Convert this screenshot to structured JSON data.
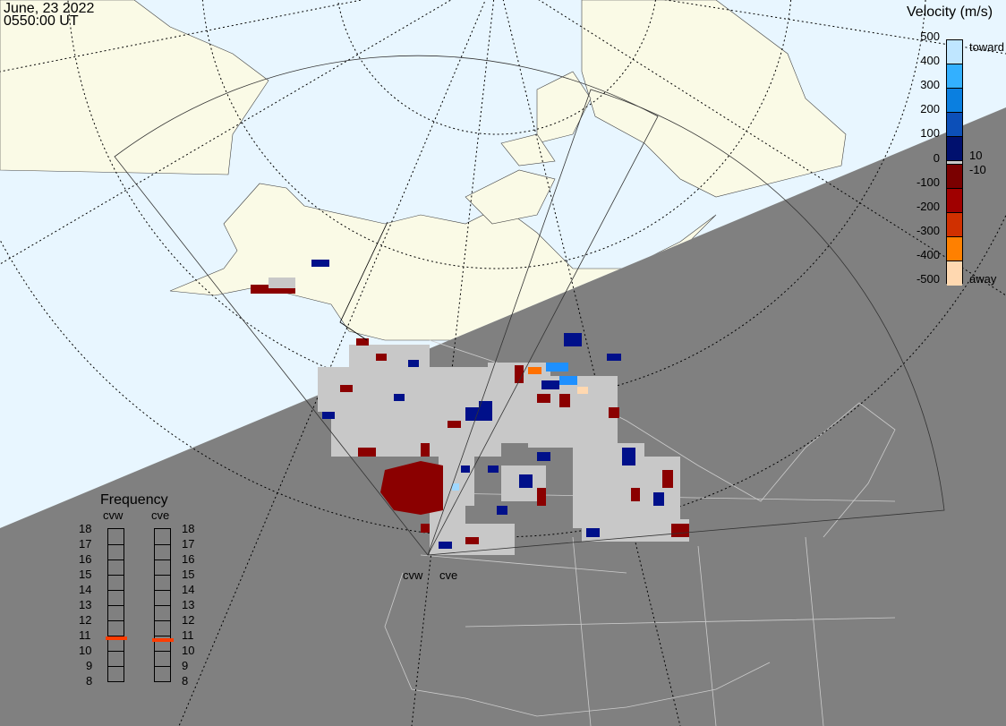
{
  "header": {
    "date": "June, 23 2022",
    "time": "0550:00 UT"
  },
  "colorbar": {
    "title": "Velocity (m/s)",
    "ticks": [
      "500",
      "400",
      "300",
      "200",
      "100",
      "0",
      "-100",
      "-200",
      "-300",
      "-400",
      "-500"
    ],
    "toward_label": "toward",
    "away_label": "away",
    "pos_threshold": "10",
    "neg_threshold": "-10",
    "colors": [
      "#bfe6ff",
      "#33b0ff",
      "#0a7fe0",
      "#0c4fb8",
      "#00106e",
      "#c8c8c8",
      "#7a0000",
      "#a00000",
      "#d03000",
      "#ff8000",
      "#ffd8b0"
    ]
  },
  "frequency": {
    "title": "Frequency",
    "radars": [
      {
        "name": "cvw",
        "value_mhz": 10.8
      },
      {
        "name": "cve",
        "value_mhz": 10.7
      }
    ],
    "ticks": [
      "18",
      "17",
      "16",
      "15",
      "14",
      "13",
      "12",
      "11",
      "10",
      "9",
      "8"
    ],
    "marker_color": "#ff3c00"
  },
  "map": {
    "radar_labels": [
      "cvw",
      "cve"
    ],
    "day_color": "#e8f6ff",
    "night_color": "#808080",
    "land_color": "#fafae6",
    "ground_scatter_color": "#c8c8c8"
  }
}
